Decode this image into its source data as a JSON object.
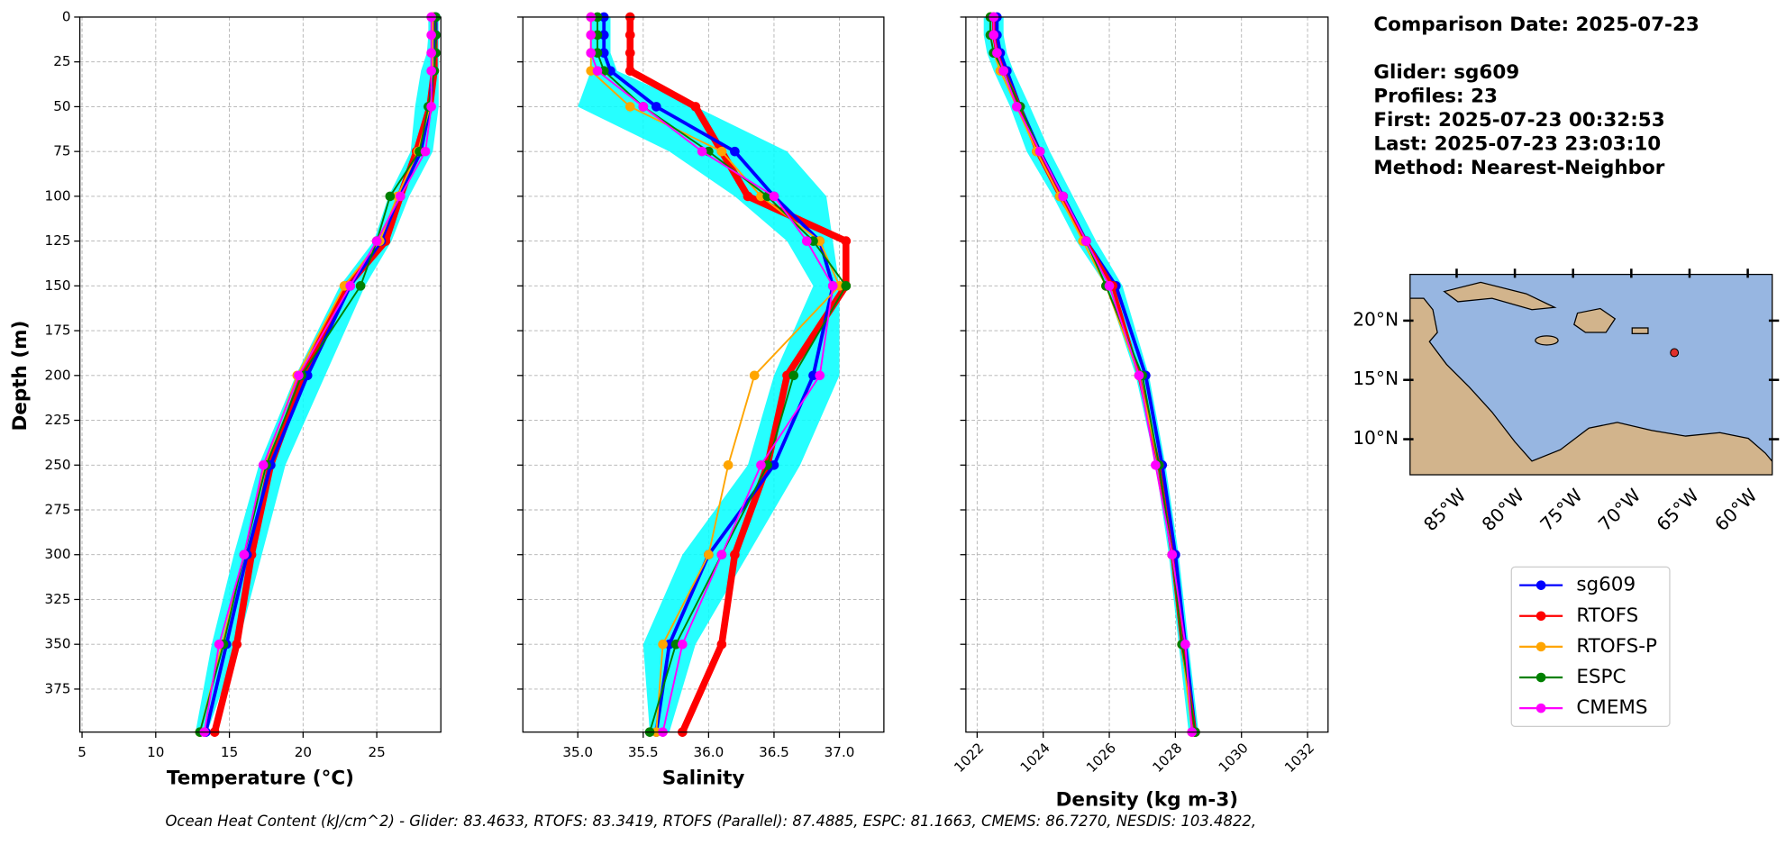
{
  "chart_data": [
    {
      "type": "profile",
      "xlabel": "Temperature (°C)",
      "ylabel": "Depth (m)",
      "depth": [
        0,
        10,
        20,
        30,
        50,
        75,
        100,
        125,
        150,
        200,
        250,
        300,
        350,
        399
      ],
      "xlim": [
        4.85,
        29.35
      ],
      "xticks": [
        5,
        10,
        15,
        20,
        25
      ],
      "xtick_rotation": 0,
      "ylim": [
        0,
        399
      ],
      "y_inverted": true,
      "yticks": [
        0,
        25,
        50,
        75,
        100,
        125,
        150,
        175,
        200,
        225,
        250,
        275,
        300,
        325,
        350,
        375
      ],
      "show_ytick_labels": true,
      "grid": true,
      "spread": {
        "color": "#00ffff",
        "low": [
          28.5,
          28.5,
          28.4,
          28.0,
          27.6,
          27.3,
          25.8,
          24.8,
          22.5,
          19.5,
          17.0,
          15.3,
          13.8,
          12.7
        ],
        "high": [
          29.2,
          29.2,
          29.2,
          29.2,
          29.2,
          28.8,
          27.2,
          26.0,
          24.2,
          21.5,
          18.8,
          17.2,
          15.6,
          13.5
        ]
      },
      "series": [
        {
          "name": "sg609",
          "color": "#0000ff",
          "linewidth": 3,
          "values": [
            29.0,
            29.0,
            28.9,
            28.8,
            28.6,
            28.0,
            26.5,
            25.3,
            23.2,
            20.3,
            17.8,
            16.2,
            14.8,
            13.4
          ]
        },
        {
          "name": "RTOFS",
          "color": "#ff0000",
          "linewidth": 6,
          "values": [
            28.9,
            28.9,
            28.9,
            28.9,
            28.6,
            27.7,
            26.6,
            25.6,
            23.0,
            20.0,
            17.8,
            16.5,
            15.5,
            14.0
          ]
        },
        {
          "name": "RTOFS-P",
          "color": "#ffa500",
          "linewidth": 1.5,
          "values": [
            28.8,
            28.8,
            28.8,
            28.8,
            28.6,
            27.8,
            26.4,
            25.2,
            22.8,
            19.6,
            17.4,
            16.0,
            14.5,
            13.0
          ]
        },
        {
          "name": "ESPC",
          "color": "#008000",
          "linewidth": 1.5,
          "values": [
            29.0,
            29.0,
            29.0,
            28.9,
            28.5,
            27.9,
            25.9,
            25.0,
            23.9,
            19.9,
            17.5,
            16.0,
            14.6,
            13.0
          ]
        },
        {
          "name": "CMEMS",
          "color": "#ff00ff",
          "linewidth": 1.5,
          "values": [
            28.7,
            28.7,
            28.7,
            28.7,
            28.7,
            28.3,
            26.6,
            25.0,
            23.2,
            19.7,
            17.3,
            16.0,
            14.3,
            13.3
          ]
        }
      ]
    },
    {
      "type": "profile",
      "xlabel": "Salinity",
      "depth": [
        0,
        10,
        20,
        30,
        50,
        75,
        100,
        125,
        150,
        200,
        250,
        300,
        350,
        399
      ],
      "xlim": [
        34.58,
        37.34
      ],
      "xticks": [
        {
          "value": 35,
          "label": "35.0"
        },
        35.5,
        {
          "value": 36,
          "label": "36.0"
        },
        36.5,
        {
          "value": 37,
          "label": "37.0"
        }
      ],
      "xtick_rotation": 0,
      "ylim": [
        0,
        399
      ],
      "y_inverted": true,
      "yticks": [
        0,
        25,
        50,
        75,
        100,
        125,
        150,
        175,
        200,
        225,
        250,
        275,
        300,
        325,
        350,
        375
      ],
      "show_ytick_labels": false,
      "grid": true,
      "spread": {
        "color": "#00ffff",
        "low": [
          35.1,
          35.1,
          35.1,
          35.1,
          35.0,
          35.7,
          36.2,
          36.6,
          36.8,
          36.5,
          36.3,
          35.8,
          35.5,
          35.55
        ],
        "high": [
          35.25,
          35.25,
          35.25,
          35.3,
          35.9,
          36.6,
          36.9,
          36.95,
          37.0,
          37.0,
          36.7,
          36.3,
          35.9,
          35.7
        ]
      },
      "series": [
        {
          "name": "sg609",
          "color": "#0000ff",
          "linewidth": 3,
          "values": [
            35.2,
            35.2,
            35.2,
            35.25,
            35.6,
            36.2,
            36.5,
            36.85,
            36.95,
            36.8,
            36.5,
            36.0,
            35.7,
            35.6
          ]
        },
        {
          "name": "RTOFS",
          "color": "#ff0000",
          "linewidth": 6,
          "values": [
            35.4,
            35.4,
            35.4,
            35.4,
            35.9,
            36.1,
            36.3,
            37.05,
            37.05,
            36.6,
            36.45,
            36.2,
            36.1,
            35.8
          ]
        },
        {
          "name": "RTOFS-P",
          "color": "#ffa500",
          "linewidth": 1.5,
          "values": [
            35.1,
            35.1,
            35.1,
            35.1,
            35.4,
            36.1,
            36.4,
            36.85,
            37.0,
            36.35,
            36.15,
            36.0,
            35.65,
            35.6
          ]
        },
        {
          "name": "ESPC",
          "color": "#008000",
          "linewidth": 1.5,
          "values": [
            35.15,
            35.15,
            35.15,
            35.2,
            35.5,
            36.0,
            36.45,
            36.8,
            37.05,
            36.65,
            36.45,
            36.1,
            35.75,
            35.55
          ]
        },
        {
          "name": "CMEMS",
          "color": "#ff00ff",
          "linewidth": 1.5,
          "values": [
            35.1,
            35.1,
            35.1,
            35.15,
            35.5,
            35.95,
            36.5,
            36.75,
            36.95,
            36.85,
            36.4,
            36.1,
            35.8,
            35.65
          ]
        }
      ]
    },
    {
      "type": "profile",
      "xlabel": "Density (kg m-3)",
      "depth": [
        0,
        10,
        20,
        30,
        50,
        75,
        100,
        125,
        150,
        200,
        250,
        300,
        350,
        399
      ],
      "xlim": [
        1021.66,
        1032.62
      ],
      "xticks": [
        1022,
        1024,
        1026,
        1028,
        1030,
        1032
      ],
      "xtick_rotation": 45,
      "ylim": [
        0,
        399
      ],
      "y_inverted": true,
      "yticks": [
        0,
        25,
        50,
        75,
        100,
        125,
        150,
        175,
        200,
        225,
        250,
        275,
        300,
        325,
        350,
        375
      ],
      "show_ytick_labels": false,
      "grid": true,
      "spread": {
        "color": "#00ffff",
        "low": [
          1022.2,
          1022.2,
          1022.3,
          1022.5,
          1023.0,
          1023.5,
          1024.3,
          1025.0,
          1025.9,
          1026.8,
          1027.4,
          1027.8,
          1028.1,
          1028.4
        ],
        "high": [
          1022.8,
          1022.8,
          1022.9,
          1023.1,
          1023.6,
          1024.2,
          1024.9,
          1025.6,
          1026.4,
          1027.2,
          1027.7,
          1028.1,
          1028.4,
          1028.7
        ]
      },
      "series": [
        {
          "name": "sg609",
          "color": "#0000ff",
          "linewidth": 3,
          "values": [
            1022.6,
            1022.6,
            1022.7,
            1022.9,
            1023.3,
            1023.9,
            1024.6,
            1025.3,
            1026.2,
            1027.1,
            1027.6,
            1028.0,
            1028.3,
            1028.6
          ]
        },
        {
          "name": "RTOFS",
          "color": "#ff0000",
          "linewidth": 3,
          "values": [
            1022.5,
            1022.5,
            1022.6,
            1022.8,
            1023.3,
            1023.8,
            1024.5,
            1025.3,
            1026.1,
            1026.9,
            1027.5,
            1027.9,
            1028.2,
            1028.6
          ]
        },
        {
          "name": "RTOFS-P",
          "color": "#ffa500",
          "linewidth": 1.5,
          "values": [
            1022.4,
            1022.4,
            1022.5,
            1022.7,
            1023.2,
            1023.8,
            1024.5,
            1025.2,
            1025.9,
            1026.9,
            1027.5,
            1027.9,
            1028.2,
            1028.5
          ]
        },
        {
          "name": "ESPC",
          "color": "#008000",
          "linewidth": 1.5,
          "values": [
            1022.4,
            1022.4,
            1022.5,
            1022.8,
            1023.3,
            1023.9,
            1024.6,
            1025.3,
            1025.9,
            1027.0,
            1027.5,
            1027.9,
            1028.2,
            1028.6
          ]
        },
        {
          "name": "CMEMS",
          "color": "#ff00ff",
          "linewidth": 1.5,
          "values": [
            1022.5,
            1022.5,
            1022.6,
            1022.8,
            1023.2,
            1023.9,
            1024.6,
            1025.3,
            1026.0,
            1026.9,
            1027.4,
            1027.9,
            1028.3,
            1028.5
          ]
        }
      ]
    }
  ],
  "info": {
    "date": "Comparison Date: 2025-07-23",
    "lines": [
      "Glider: sg609",
      "Profiles: 23",
      "First: 2025-07-23 00:32:53",
      "Last: 2025-07-23 23:03:10",
      "Method: Nearest-Neighbor"
    ]
  },
  "map": {
    "xlim": [
      -89.0,
      -57.9
    ],
    "ylim": [
      7.0,
      23.9
    ],
    "lon_ticks": [
      {
        "value": -85,
        "label": "85°W"
      },
      {
        "value": -80,
        "label": "80°W"
      },
      {
        "value": -75,
        "label": "75°W"
      },
      {
        "value": -70,
        "label": "70°W"
      },
      {
        "value": -65,
        "label": "65°W"
      },
      {
        "value": -60,
        "label": "60°W"
      }
    ],
    "lat_ticks": [
      {
        "value": 10,
        "label": "10°N"
      },
      {
        "value": 15,
        "label": "15°N"
      },
      {
        "value": 20,
        "label": "20°N"
      }
    ],
    "marker": {
      "lon": -66.3,
      "lat": 17.3,
      "color": "#e0302a"
    }
  },
  "footer": "Ocean Heat Content (kJ/cm^2) - Glider: 83.4633,  RTOFS: 83.3419,  RTOFS (Parallel): 87.4885,  ESPC: 81.1663,  CMEMS: 86.7270,  NESDIS: 103.4822,"
}
